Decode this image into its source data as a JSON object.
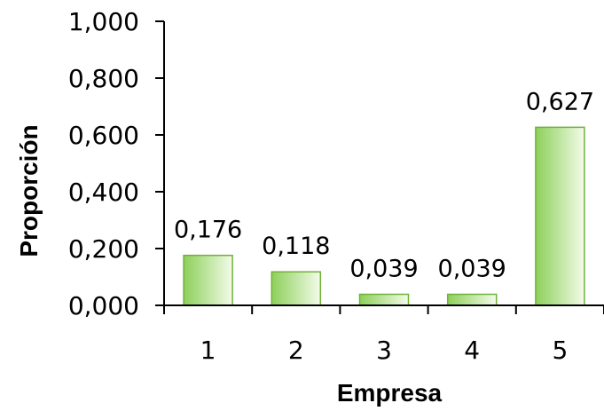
{
  "chart_data": {
    "type": "bar",
    "categories": [
      "1",
      "2",
      "3",
      "4",
      "5"
    ],
    "values": [
      0.176,
      0.118,
      0.039,
      0.039,
      0.627
    ],
    "data_labels": [
      "0,176",
      "0,118",
      "0,039",
      "0,039",
      "0,627"
    ],
    "xlabel": "Empresa",
    "ylabel": "Proporción",
    "ylim": [
      0,
      1.0
    ],
    "yticks": [
      0,
      0.2,
      0.4,
      0.6,
      0.8,
      1.0
    ],
    "ytick_labels": [
      "0,000",
      "0,200",
      "0,400",
      "0,600",
      "0,800",
      "1,000"
    ],
    "grid": false,
    "legend": "none",
    "colors": {
      "bar_dark": "#8dd05a",
      "bar_light": "#f3fbe9",
      "bar_border": "#6fb13a"
    }
  }
}
